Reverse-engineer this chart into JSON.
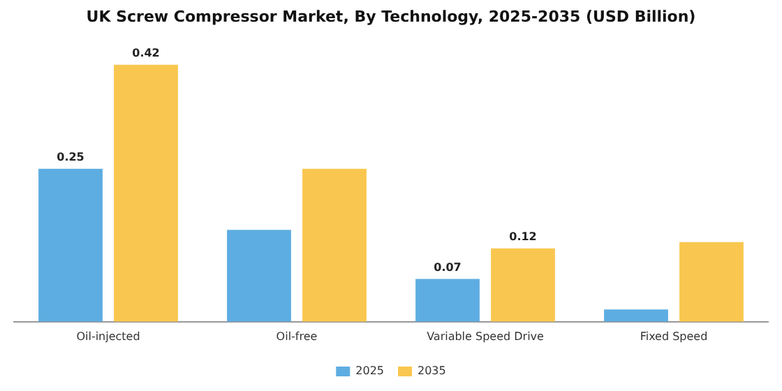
{
  "chart_data": {
    "type": "bar",
    "title": "UK Screw Compressor Market, By Technology, 2025-2035 (USD Billion)",
    "categories": [
      "Oil-injected",
      "Oil-free",
      "Variable Speed Drive",
      "Fixed Speed"
    ],
    "series": [
      {
        "name": "2025",
        "color": "#5dade2",
        "values": [
          0.25,
          0.15,
          0.07,
          0.02
        ],
        "value_labels": [
          "0.25",
          null,
          "0.07",
          null
        ]
      },
      {
        "name": "2035",
        "color": "#f9c74f",
        "values": [
          0.42,
          0.25,
          0.12,
          0.13
        ],
        "value_labels": [
          "0.42",
          null,
          "0.12",
          null
        ]
      }
    ],
    "legend": "bottom",
    "grid": false
  }
}
